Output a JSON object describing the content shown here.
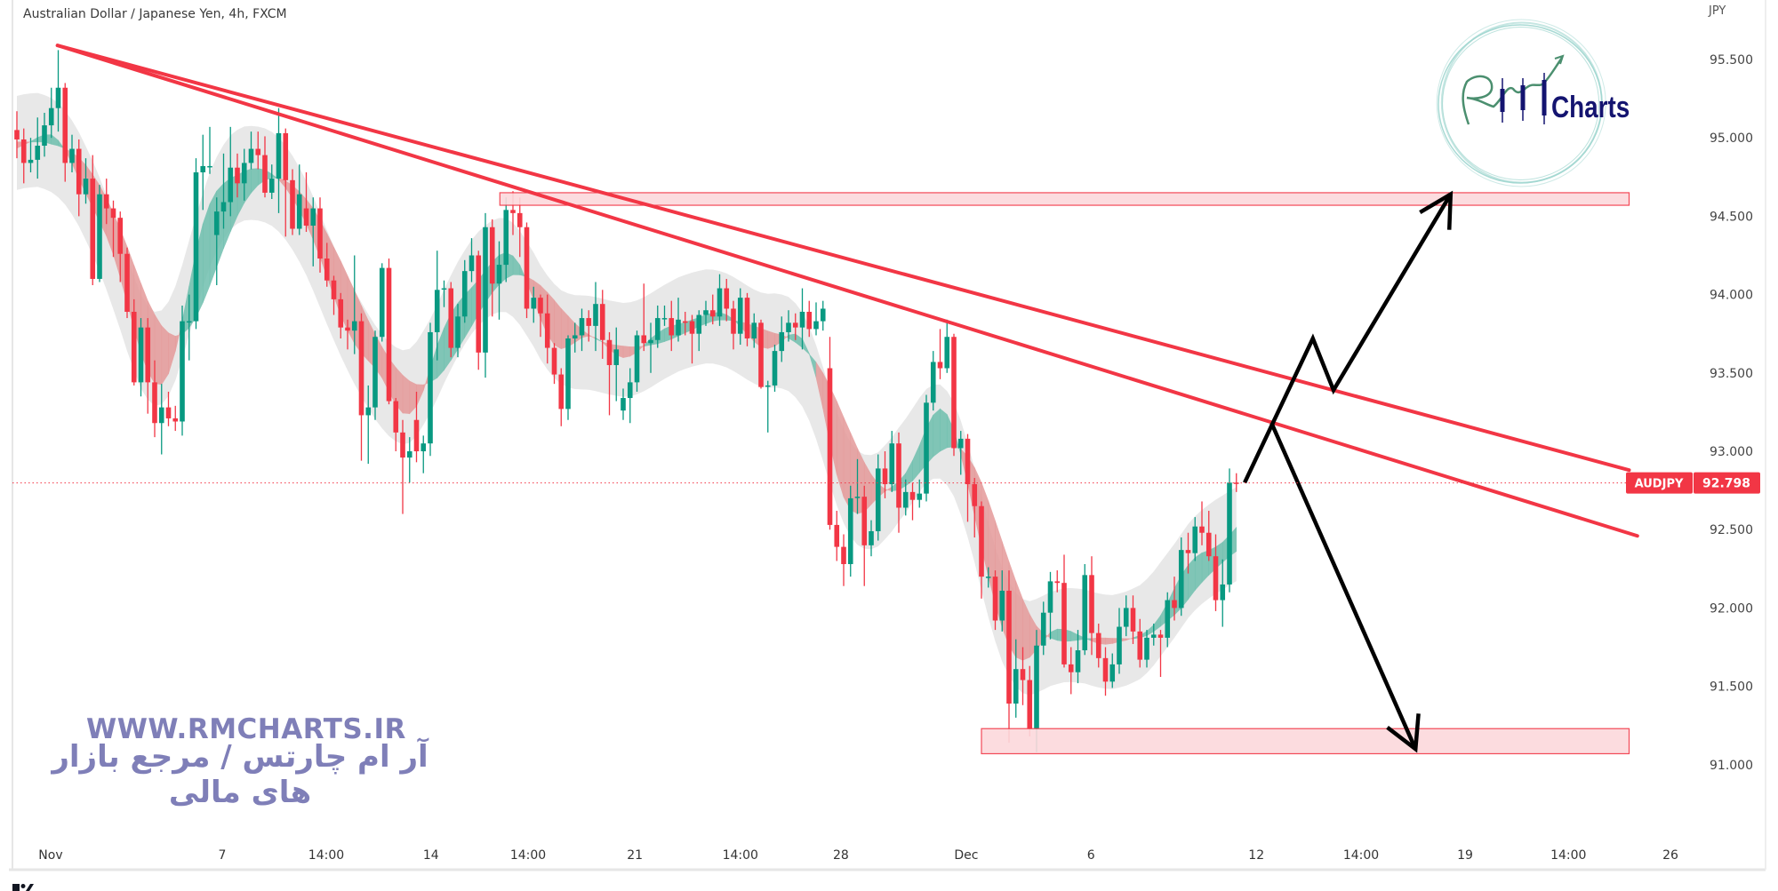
{
  "header": {
    "title": "Australian Dollar / Japanese Yen, 4h, FXCM",
    "currency": "JPY"
  },
  "watermark": {
    "url": "WWW.RMCHARTS.IR",
    "tagline": "آر ام چارتس / مرجع بازار های مالی",
    "logo_text": "Charts",
    "color": "#7f7fb8"
  },
  "colors": {
    "up": "#089981",
    "down": "#f23645",
    "trendline": "#f23645",
    "zone_fill": "#fcd9dc",
    "zone_border": "#f23645",
    "arrow": "#000000",
    "band": "#e4e4e4",
    "ribbon_up": "#6fbfae",
    "ribbon_down": "#e59a9a",
    "logo_navy": "#141470",
    "logo_teal": "#9fd6cf",
    "logo_green": "#4b8f6f"
  },
  "chart_data": {
    "type": "candlestick",
    "symbol": "AUDJPY",
    "timeframe": "4h",
    "last_price": "92.798",
    "ylim": [
      90.5,
      95.85
    ],
    "y_ticks": [
      "95.500",
      "95.000",
      "94.500",
      "94.000",
      "93.500",
      "93.000",
      "92.500",
      "92.000",
      "91.500",
      "91.000"
    ],
    "x_labels": [
      {
        "label": "Nov",
        "index": 4.9
      },
      {
        "label": "7",
        "index": 29.8
      },
      {
        "label": "14:00",
        "index": 44.9
      },
      {
        "label": "14",
        "index": 60.1
      },
      {
        "label": "14:00",
        "index": 74.2
      },
      {
        "label": "21",
        "index": 89.7
      },
      {
        "label": "14:00",
        "index": 105
      },
      {
        "label": "28",
        "index": 119.6
      },
      {
        "label": "Dec",
        "index": 137.8
      },
      {
        "label": "6",
        "index": 155.9
      },
      {
        "label": "12",
        "index": 179.9
      },
      {
        "label": "14:00",
        "index": 195.1
      },
      {
        "label": "19",
        "index": 210.2
      },
      {
        "label": "14:00",
        "index": 225.2
      },
      {
        "label": "26",
        "index": 240
      }
    ],
    "candles_format": [
      "open",
      "high",
      "low",
      "close"
    ],
    "candles": [
      [
        95.05,
        95.17,
        94.87,
        94.99
      ],
      [
        94.99,
        95.06,
        94.71,
        94.84
      ],
      [
        94.84,
        95.0,
        94.78,
        94.86
      ],
      [
        94.86,
        95.13,
        94.74,
        94.95
      ],
      [
        94.95,
        95.16,
        94.88,
        95.08
      ],
      [
        95.08,
        95.32,
        95.0,
        95.19
      ],
      [
        95.19,
        95.56,
        95.04,
        95.32
      ],
      [
        95.32,
        95.35,
        94.72,
        94.84
      ],
      [
        94.84,
        95.02,
        94.78,
        94.93
      ],
      [
        94.93,
        94.99,
        94.5,
        94.64
      ],
      [
        94.64,
        94.87,
        94.58,
        94.74
      ],
      [
        94.74,
        94.89,
        94.06,
        94.1
      ],
      [
        94.1,
        94.7,
        94.08,
        94.64
      ],
      [
        94.64,
        94.74,
        94.45,
        94.55
      ],
      [
        94.55,
        94.6,
        94.24,
        94.49
      ],
      [
        94.49,
        94.53,
        94.08,
        94.26
      ],
      [
        94.26,
        94.3,
        93.85,
        93.89
      ],
      [
        93.89,
        93.97,
        93.42,
        93.44
      ],
      [
        93.44,
        93.85,
        93.35,
        93.79
      ],
      [
        93.79,
        93.85,
        93.24,
        93.44
      ],
      [
        93.44,
        93.58,
        93.09,
        93.18
      ],
      [
        93.18,
        93.43,
        92.98,
        93.28
      ],
      [
        93.28,
        93.38,
        93.16,
        93.21
      ],
      [
        93.21,
        93.29,
        93.13,
        93.19
      ],
      [
        93.19,
        93.93,
        93.1,
        93.83
      ],
      [
        93.83,
        94.0,
        93.58,
        93.83
      ],
      [
        93.83,
        94.87,
        93.78,
        94.78
      ],
      [
        94.78,
        95.02,
        94.54,
        94.82
      ],
      [
        94.82,
        95.07,
        94.77,
        94.82
      ],
      [
        94.38,
        94.62,
        94.06,
        94.53
      ],
      [
        94.53,
        94.9,
        94.42,
        94.59
      ],
      [
        94.59,
        95.07,
        94.5,
        94.81
      ],
      [
        94.81,
        94.9,
        94.62,
        94.71
      ],
      [
        94.71,
        94.93,
        94.6,
        94.84
      ],
      [
        94.84,
        95.04,
        94.8,
        94.93
      ],
      [
        94.93,
        95.04,
        94.8,
        94.89
      ],
      [
        94.89,
        95.01,
        94.62,
        94.65
      ],
      [
        94.65,
        94.83,
        94.61,
        94.74
      ],
      [
        94.74,
        95.19,
        94.52,
        95.03
      ],
      [
        95.03,
        95.06,
        94.37,
        94.73
      ],
      [
        94.73,
        94.8,
        94.38,
        94.42
      ],
      [
        94.42,
        94.83,
        94.38,
        94.64
      ],
      [
        94.55,
        94.78,
        94.4,
        94.44
      ],
      [
        94.44,
        94.62,
        94.18,
        94.55
      ],
      [
        94.55,
        94.62,
        94.14,
        94.23
      ],
      [
        94.23,
        94.33,
        94.05,
        94.09
      ],
      [
        94.09,
        94.12,
        93.87,
        93.97
      ],
      [
        93.97,
        94.01,
        93.72,
        93.79
      ],
      [
        93.79,
        93.84,
        93.65,
        93.77
      ],
      [
        93.77,
        94.25,
        93.62,
        93.83
      ],
      [
        93.83,
        93.88,
        92.94,
        93.23
      ],
      [
        93.23,
        93.42,
        92.92,
        93.28
      ],
      [
        93.28,
        93.77,
        93.2,
        93.73
      ],
      [
        93.73,
        94.2,
        93.7,
        94.17
      ],
      [
        94.17,
        94.23,
        93.3,
        93.32
      ],
      [
        93.32,
        93.34,
        93.0,
        93.12
      ],
      [
        93.12,
        93.2,
        92.6,
        92.96
      ],
      [
        92.96,
        93.09,
        92.8,
        93.0
      ],
      [
        93.2,
        93.38,
        92.93,
        93.0
      ],
      [
        93.0,
        93.1,
        92.86,
        93.05
      ],
      [
        93.05,
        93.82,
        92.97,
        93.76
      ],
      [
        93.76,
        94.28,
        93.58,
        94.03
      ],
      [
        94.04,
        94.09,
        93.92,
        94.04
      ],
      [
        94.04,
        94.08,
        93.6,
        93.66
      ],
      [
        93.66,
        93.94,
        93.6,
        93.86
      ],
      [
        93.86,
        94.22,
        93.82,
        94.15
      ],
      [
        94.15,
        94.36,
        94.08,
        94.25
      ],
      [
        94.25,
        94.28,
        93.52,
        93.63
      ],
      [
        93.63,
        94.52,
        93.47,
        94.43
      ],
      [
        94.43,
        94.48,
        93.86,
        94.07
      ],
      [
        94.07,
        94.34,
        93.84,
        94.19
      ],
      [
        94.19,
        94.62,
        94.08,
        94.54
      ],
      [
        94.54,
        94.66,
        94.38,
        94.52
      ],
      [
        94.52,
        94.62,
        94.24,
        94.43
      ],
      [
        94.43,
        94.46,
        93.85,
        93.91
      ],
      [
        93.91,
        94.05,
        93.82,
        93.98
      ],
      [
        93.98,
        94.0,
        93.73,
        93.88
      ],
      [
        93.88,
        94.0,
        93.56,
        93.66
      ],
      [
        93.66,
        93.69,
        93.43,
        93.49
      ],
      [
        93.49,
        93.53,
        93.16,
        93.27
      ],
      [
        93.27,
        93.74,
        93.2,
        93.72
      ],
      [
        93.72,
        93.82,
        93.63,
        93.74
      ],
      [
        93.74,
        93.91,
        93.64,
        93.85
      ],
      [
        93.85,
        93.9,
        93.7,
        93.8
      ],
      [
        93.8,
        94.08,
        93.64,
        93.94
      ],
      [
        93.94,
        94.03,
        93.59,
        93.71
      ],
      [
        93.71,
        93.76,
        93.23,
        93.55
      ],
      [
        93.55,
        93.79,
        93.32,
        93.65
      ],
      [
        93.26,
        93.4,
        93.2,
        93.34
      ],
      [
        93.34,
        93.53,
        93.18,
        93.44
      ],
      [
        93.44,
        93.77,
        93.38,
        93.74
      ],
      [
        93.74,
        94.07,
        93.64,
        93.69
      ],
      [
        93.69,
        93.82,
        93.5,
        93.71
      ],
      [
        93.71,
        93.93,
        93.66,
        93.85
      ],
      [
        93.85,
        93.93,
        93.8,
        93.85
      ],
      [
        93.85,
        93.96,
        93.64,
        93.74
      ],
      [
        93.74,
        93.98,
        93.7,
        93.84
      ],
      [
        93.83,
        93.89,
        93.74,
        93.82
      ],
      [
        93.83,
        93.87,
        93.56,
        93.75
      ],
      [
        93.75,
        93.9,
        93.64,
        93.87
      ],
      [
        93.87,
        93.96,
        93.8,
        93.9
      ],
      [
        93.9,
        94.0,
        93.81,
        93.86
      ],
      [
        93.86,
        94.13,
        93.8,
        94.04
      ],
      [
        94.04,
        94.1,
        93.83,
        93.91
      ],
      [
        93.91,
        93.96,
        93.65,
        93.75
      ],
      [
        93.75,
        94.04,
        93.68,
        93.98
      ],
      [
        93.98,
        94.01,
        93.67,
        93.72
      ],
      [
        93.72,
        93.88,
        93.66,
        93.82
      ],
      [
        93.82,
        93.84,
        93.4,
        93.41
      ],
      [
        93.42,
        93.45,
        93.12,
        93.42
      ],
      [
        93.42,
        93.68,
        93.38,
        93.64
      ],
      [
        93.64,
        93.86,
        93.57,
        93.76
      ],
      [
        93.76,
        93.9,
        93.7,
        93.82
      ],
      [
        93.82,
        93.88,
        93.71,
        93.79
      ],
      [
        93.79,
        94.04,
        93.65,
        93.89
      ],
      [
        93.89,
        93.96,
        93.73,
        93.78
      ],
      [
        93.78,
        93.95,
        93.74,
        93.83
      ],
      [
        93.83,
        93.96,
        93.77,
        93.91
      ],
      [
        93.53,
        93.73,
        92.5,
        92.53
      ],
      [
        92.53,
        92.62,
        92.3,
        92.39
      ],
      [
        92.39,
        92.47,
        92.14,
        92.28
      ],
      [
        92.28,
        92.78,
        92.2,
        92.7
      ],
      [
        92.71,
        92.95,
        92.6,
        92.71
      ],
      [
        92.71,
        92.78,
        92.14,
        92.4
      ],
      [
        92.4,
        92.56,
        92.33,
        92.49
      ],
      [
        92.49,
        92.98,
        92.43,
        92.89
      ],
      [
        92.89,
        93.0,
        92.7,
        92.79
      ],
      [
        92.79,
        93.13,
        92.74,
        93.05
      ],
      [
        93.05,
        93.12,
        92.48,
        92.64
      ],
      [
        92.64,
        92.82,
        92.59,
        92.74
      ],
      [
        92.74,
        92.8,
        92.56,
        92.69
      ],
      [
        92.69,
        92.82,
        92.64,
        92.73
      ],
      [
        92.73,
        93.36,
        92.68,
        93.31
      ],
      [
        93.31,
        93.64,
        93.26,
        93.57
      ],
      [
        93.57,
        93.78,
        93.46,
        93.53
      ],
      [
        93.53,
        93.84,
        93.5,
        93.73
      ],
      [
        93.73,
        93.75,
        92.97,
        93.02
      ],
      [
        93.02,
        93.13,
        92.85,
        93.08
      ],
      [
        93.08,
        93.11,
        92.55,
        92.79
      ],
      [
        92.79,
        92.83,
        92.45,
        92.65
      ],
      [
        92.65,
        92.68,
        92.06,
        92.2
      ],
      [
        92.2,
        92.26,
        92.13,
        92.2
      ],
      [
        92.2,
        92.24,
        91.86,
        91.92
      ],
      [
        91.92,
        92.24,
        91.85,
        92.11
      ],
      [
        92.11,
        92.24,
        91.14,
        91.39
      ],
      [
        91.39,
        91.8,
        91.3,
        91.61
      ],
      [
        91.61,
        91.75,
        91.38,
        91.54
      ],
      [
        91.54,
        91.63,
        91.18,
        91.23
      ],
      [
        91.23,
        91.86,
        91.08,
        91.76
      ],
      [
        91.76,
        92.04,
        91.7,
        91.97
      ],
      [
        91.97,
        92.23,
        91.8,
        92.17
      ],
      [
        92.17,
        92.24,
        92.1,
        92.16
      ],
      [
        92.16,
        92.34,
        91.62,
        91.64
      ],
      [
        91.64,
        91.75,
        91.45,
        91.59
      ],
      [
        91.59,
        91.86,
        91.52,
        91.73
      ],
      [
        91.73,
        92.28,
        91.7,
        92.21
      ],
      [
        92.21,
        92.33,
        91.7,
        91.84
      ],
      [
        91.84,
        91.9,
        91.62,
        91.68
      ],
      [
        91.68,
        91.75,
        91.44,
        91.53
      ],
      [
        91.53,
        91.71,
        91.49,
        91.64
      ],
      [
        91.64,
        92.0,
        91.58,
        91.88
      ],
      [
        91.88,
        92.08,
        91.82,
        92.0
      ],
      [
        92.0,
        92.08,
        91.77,
        91.85
      ],
      [
        91.85,
        91.93,
        91.62,
        91.67
      ],
      [
        91.67,
        91.86,
        91.62,
        91.81
      ],
      [
        91.81,
        91.9,
        91.76,
        91.83
      ],
      [
        91.83,
        91.86,
        91.56,
        91.81
      ],
      [
        91.81,
        92.1,
        91.75,
        92.05
      ],
      [
        92.05,
        92.2,
        91.92,
        92.0
      ],
      [
        92.0,
        92.45,
        91.95,
        92.37
      ],
      [
        92.37,
        92.48,
        92.22,
        92.35
      ],
      [
        92.35,
        92.58,
        92.3,
        92.52
      ],
      [
        92.52,
        92.68,
        92.4,
        92.48
      ],
      [
        92.48,
        92.62,
        92.3,
        92.33
      ],
      [
        92.33,
        92.47,
        91.98,
        92.05
      ],
      [
        92.05,
        92.31,
        91.88,
        92.15
      ],
      [
        92.15,
        92.89,
        92.1,
        92.8
      ],
      [
        92.8,
        92.86,
        92.74,
        92.798
      ]
    ],
    "drawings": {
      "trendlines": [
        {
          "from": {
            "index": 5.9,
            "price": 95.59
          },
          "to": {
            "index": 234.0,
            "price": 92.88
          }
        },
        {
          "from": {
            "index": 5.9,
            "price": 95.59
          },
          "to": {
            "index": 235.2,
            "price": 92.46
          }
        }
      ],
      "zones": [
        {
          "from": {
            "index": 70.1,
            "price": 94.65
          },
          "to": {
            "index": 234.0,
            "price": 94.57
          }
        },
        {
          "from": {
            "index": 140.0,
            "price": 91.23
          },
          "to": {
            "index": 234.0,
            "price": 91.07
          }
        }
      ],
      "arrows": [
        {
          "points": [
            {
              "index": 178.2,
              "price": 92.8
            },
            {
              "index": 188.1,
              "price": 93.72
            },
            {
              "index": 191.1,
              "price": 93.39
            },
            {
              "index": 208.1,
              "price": 94.64
            }
          ]
        },
        {
          "points": [
            {
              "index": 182.1,
              "price": 93.18
            },
            {
              "index": 203.0,
              "price": 91.1
            }
          ]
        }
      ]
    }
  }
}
